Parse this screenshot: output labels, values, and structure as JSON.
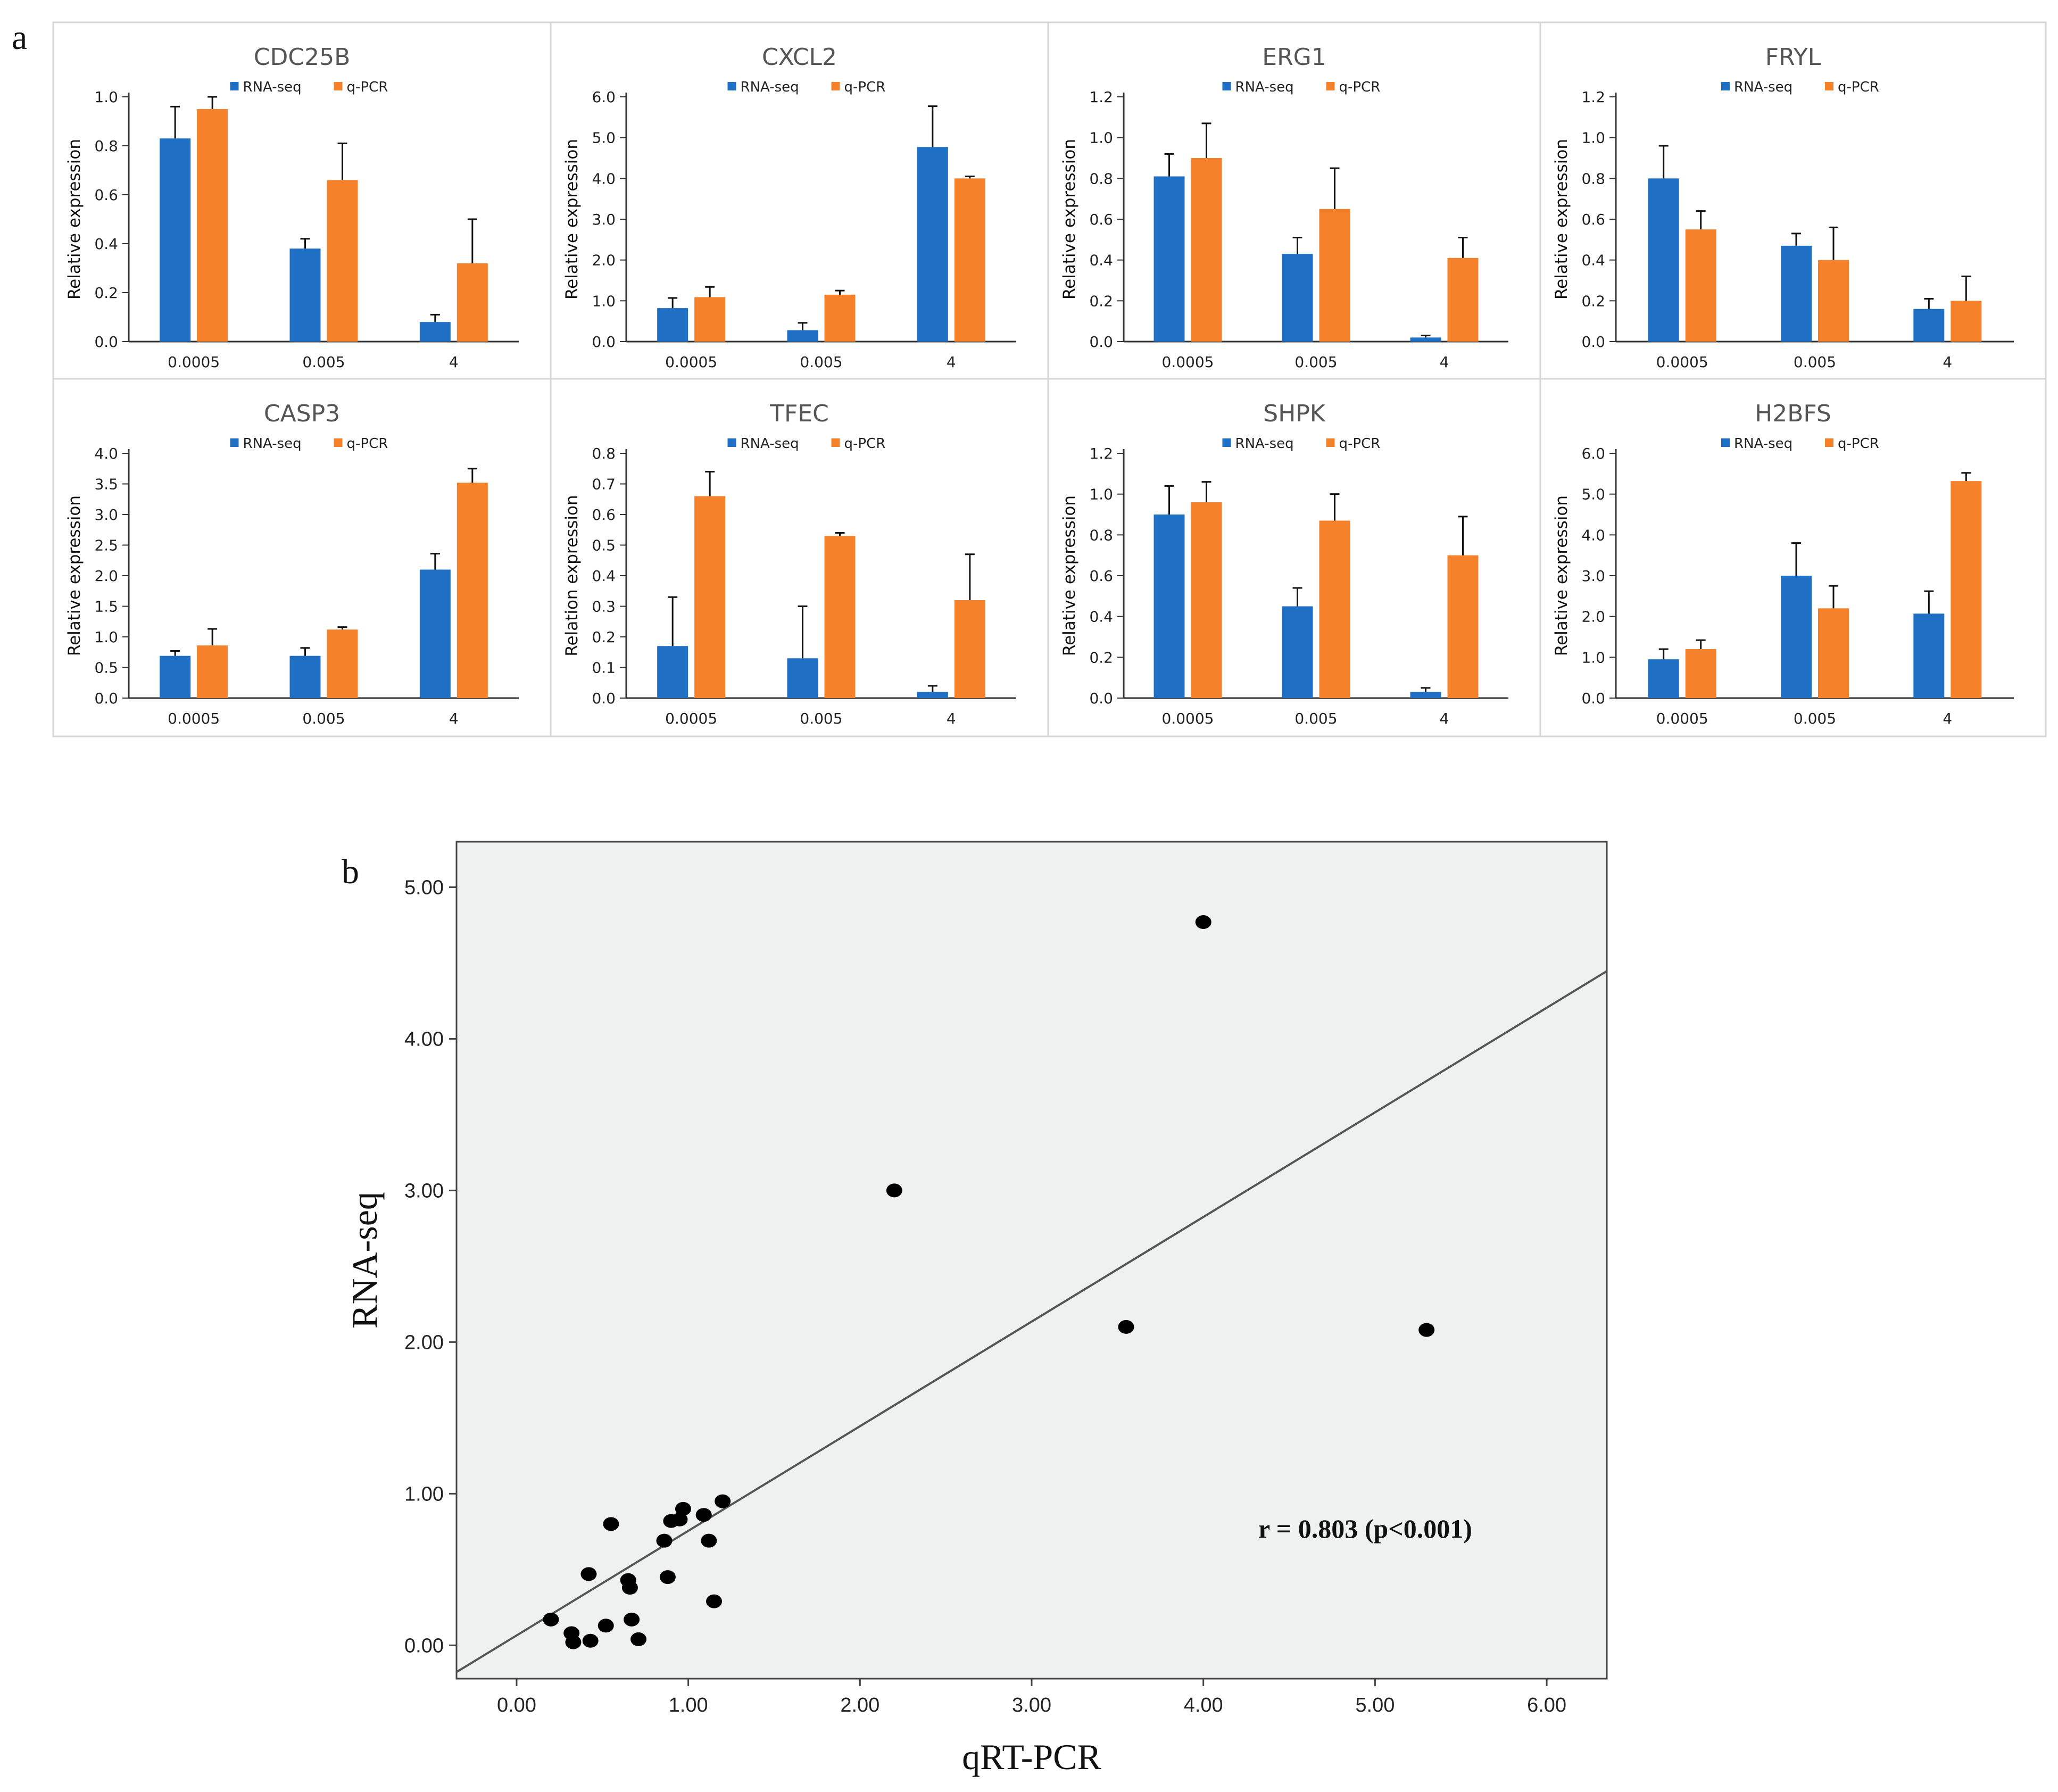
{
  "panel_a_label": "a",
  "panel_b_label": "b",
  "colors": {
    "rna_seq": "#1f6fc4",
    "qpcr": "#f5822a",
    "panel_border": "#d6d6d6",
    "scatter_bg": "#eff0f0",
    "point": "#000000"
  },
  "chart_data": [
    {
      "type": "bar",
      "title": "CDC25B",
      "ylabel": "Relative expression",
      "categories": [
        "0.0005",
        "0.005",
        "4"
      ],
      "ylim": [
        0,
        1.0
      ],
      "yticks": [
        "0.0",
        "0.2",
        "0.4",
        "0.6",
        "0.8",
        "1.0"
      ],
      "series": [
        {
          "name": "RNA-seq",
          "values": [
            0.83,
            0.38,
            0.08
          ],
          "errors": [
            0.13,
            0.04,
            0.03
          ]
        },
        {
          "name": "q-PCR",
          "values": [
            0.95,
            0.66,
            0.32
          ],
          "errors": [
            0.05,
            0.15,
            0.18
          ]
        }
      ]
    },
    {
      "type": "bar",
      "title": "CXCL2",
      "ylabel": "Relative expression",
      "categories": [
        "0.0005",
        "0.005",
        "4"
      ],
      "ylim": [
        0,
        6.0
      ],
      "yticks": [
        "0.0",
        "1.0",
        "2.0",
        "3.0",
        "4.0",
        "5.0",
        "6.0"
      ],
      "series": [
        {
          "name": "RNA-seq",
          "values": [
            0.82,
            0.28,
            4.77
          ],
          "errors": [
            0.25,
            0.18,
            1.0
          ]
        },
        {
          "name": "q-PCR",
          "values": [
            1.09,
            1.15,
            4.0
          ],
          "errors": [
            0.25,
            0.1,
            0.05
          ]
        }
      ]
    },
    {
      "type": "bar",
      "title": "ERG1",
      "ylabel": "Relative expression",
      "categories": [
        "0.0005",
        "0.005",
        "4"
      ],
      "ylim": [
        0,
        1.2
      ],
      "yticks": [
        "0.0",
        "0.2",
        "0.4",
        "0.6",
        "0.8",
        "1.0",
        "1.2"
      ],
      "series": [
        {
          "name": "RNA-seq",
          "values": [
            0.81,
            0.43,
            0.02
          ],
          "errors": [
            0.11,
            0.08,
            0.01
          ]
        },
        {
          "name": "q-PCR",
          "values": [
            0.9,
            0.65,
            0.41
          ],
          "errors": [
            0.17,
            0.2,
            0.1
          ]
        }
      ]
    },
    {
      "type": "bar",
      "title": "FRYL",
      "ylabel": "Relative expression",
      "categories": [
        "0.0005",
        "0.005",
        "4"
      ],
      "ylim": [
        0,
        1.2
      ],
      "yticks": [
        "0.0",
        "0.2",
        "0.4",
        "0.6",
        "0.8",
        "1.0",
        "1.2"
      ],
      "series": [
        {
          "name": "RNA-seq",
          "values": [
            0.8,
            0.47,
            0.16
          ],
          "errors": [
            0.16,
            0.06,
            0.05
          ]
        },
        {
          "name": "q-PCR",
          "values": [
            0.55,
            0.4,
            0.2
          ],
          "errors": [
            0.09,
            0.16,
            0.12
          ]
        }
      ]
    },
    {
      "type": "bar",
      "title": "CASP3",
      "ylabel": "Relative expression",
      "categories": [
        "0.0005",
        "0.005",
        "4"
      ],
      "ylim": [
        0,
        4.0
      ],
      "yticks": [
        "0.0",
        "0.5",
        "1.0",
        "1.5",
        "2.0",
        "2.5",
        "3.0",
        "3.5",
        "4.0"
      ],
      "series": [
        {
          "name": "RNA-seq",
          "values": [
            0.69,
            0.69,
            2.1
          ],
          "errors": [
            0.08,
            0.13,
            0.26
          ]
        },
        {
          "name": "q-PCR",
          "values": [
            0.86,
            1.12,
            3.52
          ],
          "errors": [
            0.27,
            0.04,
            0.23
          ]
        }
      ]
    },
    {
      "type": "bar",
      "title": "TFEC",
      "ylabel": "Relation expression",
      "categories": [
        "0.0005",
        "0.005",
        "4"
      ],
      "ylim": [
        0,
        0.8
      ],
      "yticks": [
        "0.0",
        "0.1",
        "0.2",
        "0.3",
        "0.4",
        "0.5",
        "0.6",
        "0.7",
        "0.8"
      ],
      "series": [
        {
          "name": "RNA-seq",
          "values": [
            0.17,
            0.13,
            0.02
          ],
          "errors": [
            0.16,
            0.17,
            0.02
          ]
        },
        {
          "name": "q-PCR",
          "values": [
            0.66,
            0.53,
            0.32
          ],
          "errors": [
            0.08,
            0.01,
            0.15
          ]
        }
      ]
    },
    {
      "type": "bar",
      "title": "SHPK",
      "ylabel": "Relative expression",
      "categories": [
        "0.0005",
        "0.005",
        "4"
      ],
      "ylim": [
        0,
        1.2
      ],
      "yticks": [
        "0.0",
        "0.2",
        "0.4",
        "0.6",
        "0.8",
        "1.0",
        "1.2"
      ],
      "series": [
        {
          "name": "RNA-seq",
          "values": [
            0.9,
            0.45,
            0.03
          ],
          "errors": [
            0.14,
            0.09,
            0.02
          ]
        },
        {
          "name": "q-PCR",
          "values": [
            0.96,
            0.87,
            0.7
          ],
          "errors": [
            0.1,
            0.13,
            0.19
          ]
        }
      ]
    },
    {
      "type": "bar",
      "title": "H2BFS",
      "ylabel": "Relative expression",
      "categories": [
        "0.0005",
        "0.005",
        "4"
      ],
      "ylim": [
        0,
        6.0
      ],
      "yticks": [
        "0.0",
        "1.0",
        "2.0",
        "3.0",
        "4.0",
        "5.0",
        "6.0"
      ],
      "series": [
        {
          "name": "RNA-seq",
          "values": [
            0.95,
            3.0,
            2.07
          ],
          "errors": [
            0.25,
            0.8,
            0.55
          ]
        },
        {
          "name": "q-PCR",
          "values": [
            1.2,
            2.2,
            5.32
          ],
          "errors": [
            0.22,
            0.55,
            0.2
          ]
        }
      ]
    },
    {
      "type": "scatter",
      "title": "",
      "xlabel": "qRT-PCR",
      "ylabel": "RNA-seq",
      "xlim": [
        -0.35,
        6.35
      ],
      "ylim": [
        -0.22,
        5.3
      ],
      "xticks": [
        "0.00",
        "1.00",
        "2.00",
        "3.00",
        "4.00",
        "5.00",
        "6.00"
      ],
      "yticks": [
        "0.00",
        "1.00",
        "2.00",
        "3.00",
        "4.00",
        "5.00"
      ],
      "annotation": "r = 0.803 (p<0.001)",
      "fit_line": {
        "intercept": 0.065,
        "slope": 0.69
      },
      "points": [
        [
          4.0,
          4.77
        ],
        [
          2.2,
          3.0
        ],
        [
          3.55,
          2.1
        ],
        [
          5.3,
          2.08
        ],
        [
          0.2,
          0.17
        ],
        [
          0.32,
          0.08
        ],
        [
          0.33,
          0.02
        ],
        [
          0.42,
          0.47
        ],
        [
          0.43,
          0.03
        ],
        [
          0.52,
          0.13
        ],
        [
          0.55,
          0.8
        ],
        [
          0.65,
          0.43
        ],
        [
          0.66,
          0.38
        ],
        [
          0.67,
          0.17
        ],
        [
          0.71,
          0.04
        ],
        [
          0.86,
          0.69
        ],
        [
          0.88,
          0.45
        ],
        [
          0.9,
          0.82
        ],
        [
          0.95,
          0.83
        ],
        [
          0.97,
          0.9
        ],
        [
          1.09,
          0.86
        ],
        [
          1.12,
          0.69
        ],
        [
          1.15,
          0.29
        ],
        [
          1.2,
          0.95
        ]
      ]
    }
  ]
}
